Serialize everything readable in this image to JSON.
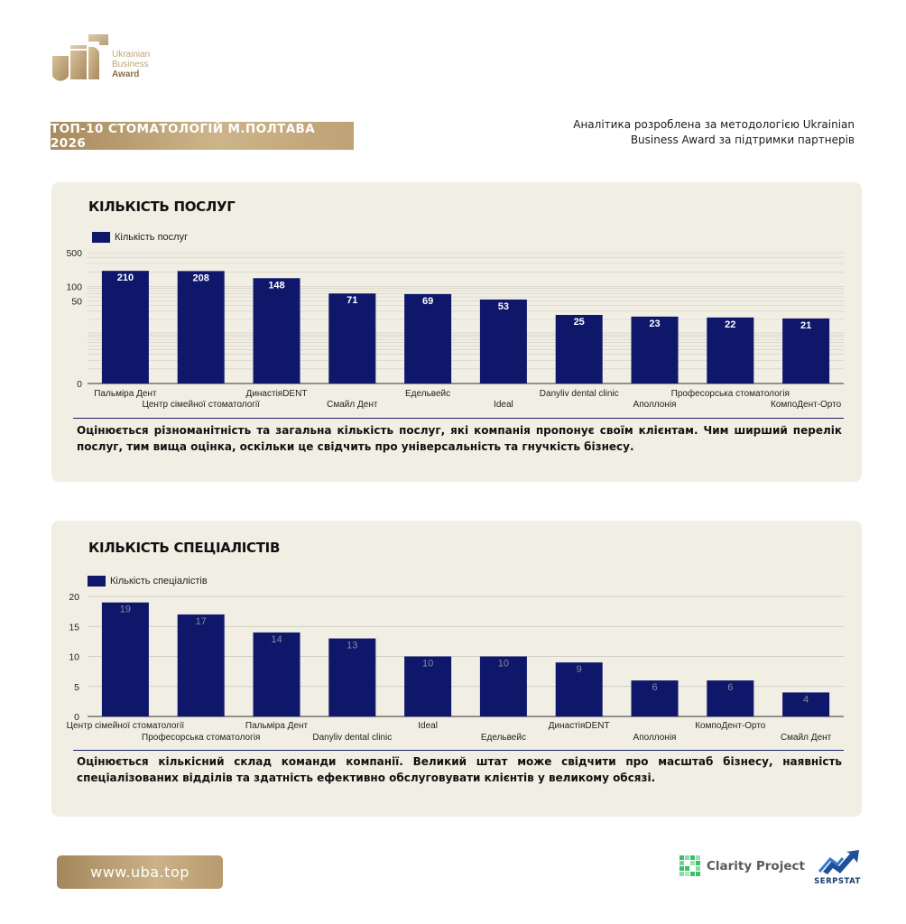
{
  "logo": {
    "line1": "Ukrainian",
    "line2": "Business",
    "line3": "Award"
  },
  "header": {
    "title": "ТОП-10 СТОМАТОЛОГІЙ М.ПОЛТАВА 2026",
    "analytics_line1": "Аналітика розроблена за методологією Ukrainian",
    "analytics_line2": "Business Award за підтримки партнерів"
  },
  "colors": {
    "bar": "#0f176b",
    "gold": "#bfa276",
    "card_bg": "#f1eee4"
  },
  "chart_data": [
    {
      "type": "bar",
      "title": "КІЛЬКІСТЬ ПОСЛУГ",
      "legend": "Кількість послуг",
      "categories": [
        "Пальміра Дент",
        "Центр сімейної стоматології",
        "ДинастіяDENT",
        "Смайл Дент",
        "Едельвейс",
        "Ideal",
        "Danyliv dental clinic",
        "Аполлонія",
        "Професорська стоматологія",
        "КомпоДент-Орто"
      ],
      "values": [
        210,
        208,
        148,
        71,
        69,
        53,
        25,
        23,
        22,
        21
      ],
      "scale": "log1p",
      "yticks": [
        0,
        50,
        100,
        500
      ],
      "ylim": [
        0,
        500
      ],
      "grid": true,
      "description": "Оцінюється різноманітність та загальна кількість послуг, які компанія пропонує своїм клієнтам. Чим ширший перелік послуг, тим вища оцінка, оскільки це свідчить про універсальність та гнучкість бізнесу."
    },
    {
      "type": "bar",
      "title": "КІЛЬКІСТЬ СПЕЦІАЛІСТІВ",
      "legend": "Кількість спеціалістів",
      "categories": [
        "Центр сімейної стоматології",
        "Професорська стоматологія",
        "Пальміра Дент",
        "Danyliv dental clinic",
        "Ideal",
        "Едельвейс",
        "ДинастіяDENT",
        "Аполлонія",
        "КомпоДент-Орто",
        "Смайл Дент"
      ],
      "values": [
        19,
        17,
        14,
        13,
        10,
        10,
        9,
        6,
        6,
        4
      ],
      "scale": "linear",
      "yticks": [
        0,
        5,
        10,
        15,
        20
      ],
      "ylim": [
        0,
        20
      ],
      "grid": true,
      "description": "Оцінюється кількісний склад команди компанії. Великий штат може свідчити про масштаб бізнесу, наявність спеціалізованих відділів та здатність ефективно обслуговувати клієнтів у великому обсязі."
    }
  ],
  "footer": {
    "url": "www.uba.top",
    "partner1": "Clarity Project",
    "partner2": "SERPSTAT"
  }
}
